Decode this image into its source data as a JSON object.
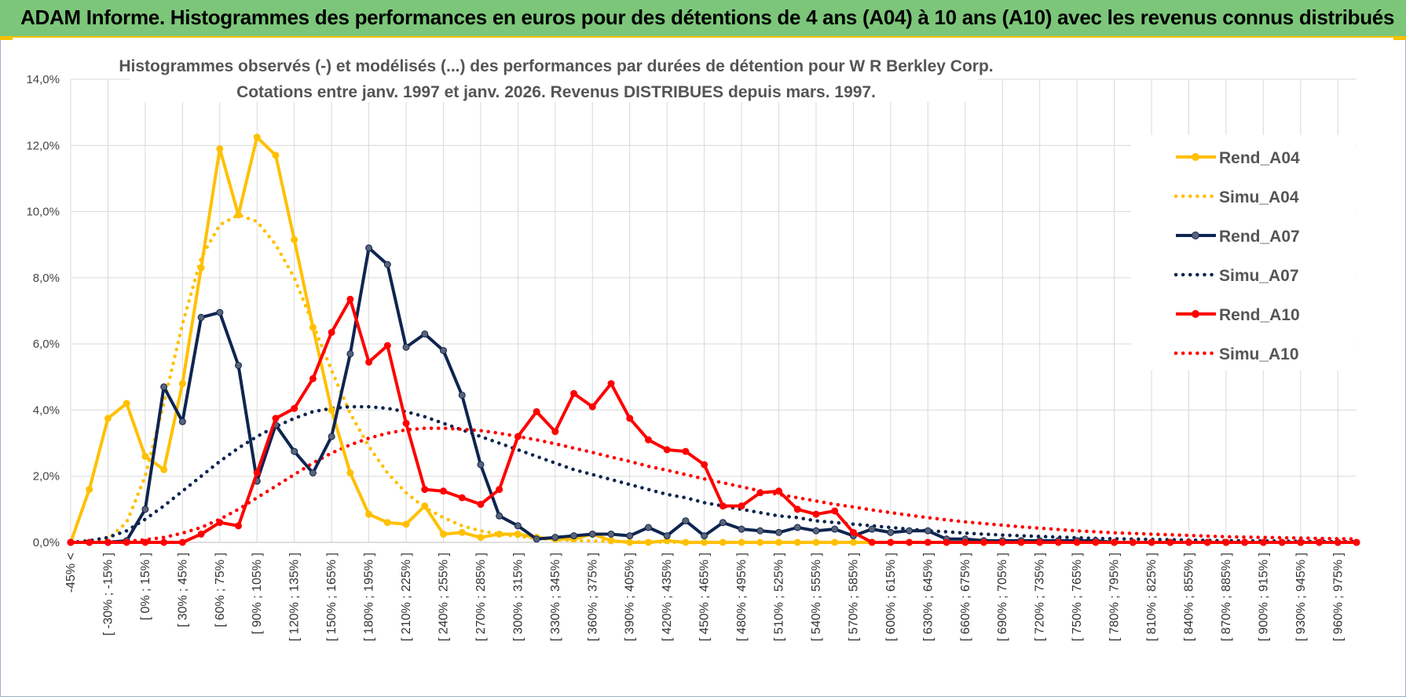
{
  "header": {
    "title": "ADAM Informe. Histogrammes des performances en euros pour des détentions de 4 ans (A04) à 10 ans (A10) avec les revenus connus distribués"
  },
  "colors": {
    "banner": "#7cc67a",
    "accent": "#f5c000",
    "grid": "#d9d9d9"
  },
  "chart_data": {
    "type": "line",
    "title": "Histogrammes observés (-) et modélisés (...) des performances par durées de détention pour W R Berkley Corp.",
    "subtitle": "Cotations entre janv. 1997 et janv. 2026. Revenus DISTRIBUES depuis mars. 1997.",
    "xlabel": "",
    "ylabel": "",
    "ylim": [
      0,
      14
    ],
    "yticks": [
      "0,0%",
      "2,0%",
      "4,0%",
      "6,0%",
      "8,0%",
      "10,0%",
      "12,0%",
      "14,0%"
    ],
    "legend_position": "right",
    "categories": [
      "-45% <",
      "[ -45% ; -30% ]",
      "[ -30% ; -15% ]",
      "[ -15% ; 0% ]",
      "[ 0% ; 15% ]",
      "[ 15% ; 30% ]",
      "[ 30% ; 45% ]",
      "[ 45% ; 60% ]",
      "[ 60% ; 75% ]",
      "[ 75% ; 90% ]",
      "[ 90% ; 105% ]",
      "[ 105% ; 120% ]",
      "[ 120% ; 135% ]",
      "[ 135% ; 150% ]",
      "[ 150% ; 165% ]",
      "[ 165% ; 180% ]",
      "[ 180% ; 195% ]",
      "[ 195% ; 210% ]",
      "[ 210% ; 225% ]",
      "[ 225% ; 240% ]",
      "[ 240% ; 255% ]",
      "[ 255% ; 270% ]",
      "[ 270% ; 285% ]",
      "[ 285% ; 300% ]",
      "[ 300% ; 315% ]",
      "[ 315% ; 330% ]",
      "[ 330% ; 345% ]",
      "[ 345% ; 360% ]",
      "[ 360% ; 375% ]",
      "[ 375% ; 390% ]",
      "[ 390% ; 405% ]",
      "[ 405% ; 420% ]",
      "[ 420% ; 435% ]",
      "[ 435% ; 450% ]",
      "[ 450% ; 465% ]",
      "[ 465% ; 480% ]",
      "[ 480% ; 495% ]",
      "[ 495% ; 510% ]",
      "[ 510% ; 525% ]",
      "[ 525% ; 540% ]",
      "[ 540% ; 555% ]",
      "[ 555% ; 570% ]",
      "[ 570% ; 585% ]",
      "[ 585% ; 600% ]",
      "[ 600% ; 615% ]",
      "[ 615% ; 630% ]",
      "[ 630% ; 645% ]",
      "[ 645% ; 660% ]",
      "[ 660% ; 675% ]",
      "[ 675% ; 690% ]",
      "[ 690% ; 705% ]",
      "[ 705% ; 720% ]",
      "[ 720% ; 735% ]",
      "[ 735% ; 750% ]",
      "[ 750% ; 765% ]",
      "[ 765% ; 780% ]",
      "[ 780% ; 795% ]",
      "[ 795% ; 810% ]",
      "[ 810% ; 825% ]",
      "[ 825% ; 840% ]",
      "[ 840% ; 855% ]",
      "[ 855% ; 870% ]",
      "[ 870% ; 885% ]",
      "[ 885% ; 900% ]",
      "[ 900% ; 915% ]",
      "[ 915% ; 930% ]",
      "[ 930% ; 945% ]",
      "[ 945% ; 960% ]",
      "[ 960% ; 975% ]",
      "[ 975% ; 990% ]"
    ],
    "visible_tick_labels": [
      "-45% <",
      "[ -30% ; -15% ]",
      "[ 0% ; 15% ]",
      "[ 30% ; 45% ]",
      "[ 60% ; 75% ]",
      "[ 90% ; 105% ]",
      "[ 120% ; 135% ]",
      "[ 150% ; 165% ]",
      "[ 180% ; 195% ]",
      "[ 210% ; 225% ]",
      "[ 240% ; 255% ]",
      "[ 270% ; 285% ]",
      "[ 300% ; 315% ]",
      "[ 330% ; 345% ]",
      "[ 360% ; 375% ]",
      "[ 390% ; 405% ]",
      "[ 420% ; 435% ]",
      "[ 450% ; 465% ]",
      "[ 480% ; 495% ]",
      "[ 510% ; 525% ]",
      "[ 540% ; 555% ]",
      "[ 570% ; 585% ]",
      "[ 600% ; 615% ]",
      "[ 630% ; 645% ]",
      "[ 660% ; 675% ]",
      "[ 690% ; 705% ]",
      "[ 720% ; 735% ]",
      "[ 750% ; 765% ]",
      "[ 780% ; 795% ]",
      "[ 810% ; 825% ]",
      "[ 840% ; 855% ]",
      "[ 870% ; 885% ]",
      "[ 900% ; 915% ]",
      "[ 930% ; 945% ]",
      "[ 960% ; 975% ]"
    ],
    "series": [
      {
        "name": "Rend_A04",
        "color": "#FFC000",
        "style": "solid",
        "values": [
          0.0,
          1.6,
          3.75,
          4.2,
          2.6,
          2.2,
          4.8,
          8.3,
          11.9,
          9.9,
          12.25,
          11.7,
          9.15,
          6.5,
          4.0,
          2.1,
          0.85,
          0.6,
          0.55,
          1.1,
          0.25,
          0.3,
          0.15,
          0.25,
          0.25,
          0.15,
          0.1,
          0.1,
          0.25,
          0.05,
          0.0,
          0.0,
          0.05,
          0.0,
          0.0,
          0.0,
          0.0,
          0.0,
          0.0,
          0.0,
          0.0,
          0.0,
          0.0,
          0.0,
          0.0,
          0.0,
          0.0,
          0.0,
          0.0,
          0.0,
          0.0,
          0.0,
          0.0,
          0.0,
          0.0,
          0.0,
          0.0,
          0.0,
          0.0,
          0.0,
          0.0,
          0.0,
          0.0,
          0.0,
          0.0,
          0.0,
          0.0,
          0.0,
          0.0,
          0.0
        ]
      },
      {
        "name": "Simu_A04",
        "color": "#FFC000",
        "style": "dotted",
        "values": [
          0.0,
          0.02,
          0.1,
          0.6,
          2.0,
          4.2,
          6.6,
          8.6,
          9.6,
          9.9,
          9.7,
          9.0,
          8.0,
          6.6,
          5.2,
          3.9,
          2.9,
          2.1,
          1.5,
          1.05,
          0.75,
          0.5,
          0.35,
          0.25,
          0.18,
          0.12,
          0.08,
          0.06,
          0.04,
          0.03,
          0.02,
          0.01,
          0.01,
          0.0,
          0.0,
          0.0,
          0.0,
          0.0,
          0.0,
          0.0,
          0.0,
          0.0,
          0.0,
          0.0,
          0.0,
          0.0,
          0.0,
          0.0,
          0.0,
          0.0,
          0.0,
          0.0,
          0.0,
          0.0,
          0.0,
          0.0,
          0.0,
          0.0,
          0.0,
          0.0,
          0.0,
          0.0,
          0.0,
          0.0,
          0.0,
          0.0,
          0.0,
          0.0,
          0.0,
          0.0
        ]
      },
      {
        "name": "Rend_A07",
        "color": "#0F2550",
        "style": "solid",
        "values": [
          0.0,
          0.0,
          0.0,
          0.05,
          1.0,
          4.7,
          3.65,
          6.8,
          6.95,
          5.35,
          1.85,
          3.55,
          2.75,
          2.1,
          3.2,
          5.7,
          8.9,
          8.4,
          5.9,
          6.3,
          5.8,
          4.45,
          2.35,
          0.8,
          0.5,
          0.1,
          0.15,
          0.2,
          0.25,
          0.25,
          0.2,
          0.45,
          0.2,
          0.65,
          0.2,
          0.6,
          0.4,
          0.35,
          0.3,
          0.45,
          0.35,
          0.4,
          0.2,
          0.4,
          0.3,
          0.35,
          0.35,
          0.1,
          0.1,
          0.05,
          0.05,
          0.05,
          0.05,
          0.05,
          0.05,
          0.05,
          0.0,
          0.0,
          0.0,
          0.0,
          0.0,
          0.0,
          0.0,
          0.0,
          0.0,
          0.0,
          0.0,
          0.0,
          0.0,
          0.0
        ]
      },
      {
        "name": "Simu_A07",
        "color": "#0F2550",
        "style": "dotted",
        "values": [
          0.0,
          0.05,
          0.15,
          0.35,
          0.7,
          1.1,
          1.55,
          2.0,
          2.45,
          2.85,
          3.2,
          3.5,
          3.75,
          3.95,
          4.05,
          4.1,
          4.1,
          4.05,
          3.95,
          3.8,
          3.6,
          3.4,
          3.2,
          3.0,
          2.8,
          2.6,
          2.4,
          2.2,
          2.05,
          1.9,
          1.75,
          1.6,
          1.45,
          1.35,
          1.2,
          1.1,
          1.0,
          0.9,
          0.8,
          0.75,
          0.65,
          0.6,
          0.55,
          0.5,
          0.45,
          0.4,
          0.35,
          0.32,
          0.28,
          0.25,
          0.22,
          0.2,
          0.18,
          0.16,
          0.14,
          0.12,
          0.11,
          0.1,
          0.09,
          0.08,
          0.07,
          0.06,
          0.05,
          0.05,
          0.04,
          0.04,
          0.03,
          0.03,
          0.02,
          0.02
        ]
      },
      {
        "name": "Rend_A10",
        "color": "#FF0000",
        "style": "solid",
        "values": [
          0.0,
          0.0,
          0.0,
          0.0,
          0.0,
          0.0,
          0.0,
          0.25,
          0.6,
          0.5,
          2.1,
          3.75,
          4.05,
          4.95,
          6.35,
          7.35,
          5.45,
          5.95,
          3.6,
          1.6,
          1.55,
          1.35,
          1.15,
          1.6,
          3.2,
          3.95,
          3.35,
          4.5,
          4.1,
          4.8,
          3.75,
          3.1,
          2.8,
          2.75,
          2.35,
          1.1,
          1.1,
          1.5,
          1.55,
          1.0,
          0.85,
          0.95,
          0.3,
          0.0,
          0.0,
          0.0,
          0.0,
          0.0,
          0.0,
          0.0,
          0.0,
          0.0,
          0.0,
          0.0,
          0.0,
          0.0,
          0.0,
          0.0,
          0.0,
          0.0,
          0.0,
          0.0,
          0.0,
          0.0,
          0.0,
          0.0,
          0.0,
          0.0,
          0.0,
          0.0
        ]
      },
      {
        "name": "Simu_A10",
        "color": "#FF0000",
        "style": "dotted",
        "values": [
          0.0,
          0.0,
          0.01,
          0.03,
          0.08,
          0.15,
          0.28,
          0.45,
          0.7,
          1.0,
          1.35,
          1.7,
          2.05,
          2.4,
          2.7,
          2.95,
          3.15,
          3.3,
          3.4,
          3.45,
          3.45,
          3.42,
          3.38,
          3.3,
          3.2,
          3.1,
          2.98,
          2.85,
          2.72,
          2.58,
          2.45,
          2.3,
          2.18,
          2.05,
          1.92,
          1.8,
          1.68,
          1.56,
          1.45,
          1.35,
          1.25,
          1.15,
          1.07,
          0.98,
          0.9,
          0.82,
          0.75,
          0.68,
          0.62,
          0.57,
          0.52,
          0.47,
          0.43,
          0.39,
          0.35,
          0.32,
          0.29,
          0.27,
          0.25,
          0.23,
          0.21,
          0.19,
          0.17,
          0.16,
          0.15,
          0.14,
          0.13,
          0.12,
          0.11,
          0.1
        ]
      }
    ]
  }
}
